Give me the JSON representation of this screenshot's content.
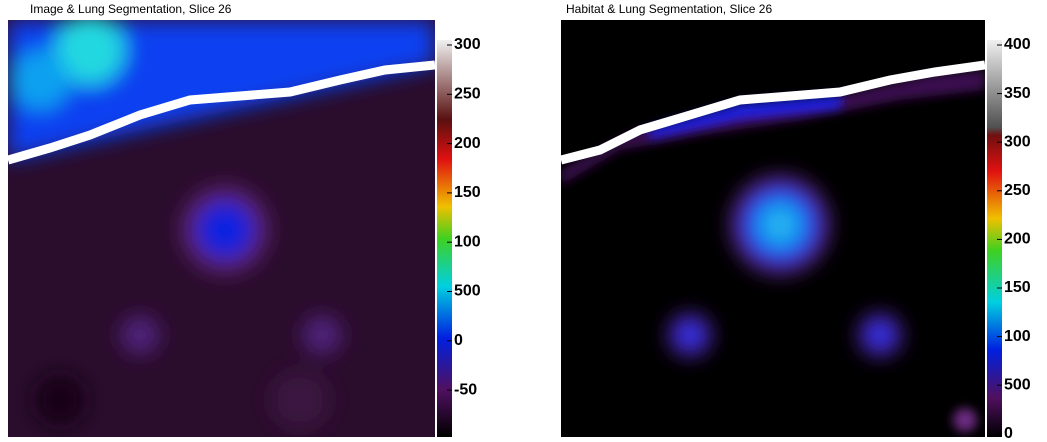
{
  "panels": [
    {
      "title": "Image & Lung Segmentation, Slice 26",
      "colorbar_labels": [
        "300",
        "250",
        "200",
        "150",
        "100",
        "500",
        "0",
        "-50"
      ]
    },
    {
      "title": "Habitat & Lung Segmentation, Slice 26",
      "colorbar_labels": [
        "400",
        "350",
        "300",
        "250",
        "200",
        "150",
        "100",
        "500",
        "0"
      ]
    }
  ]
}
